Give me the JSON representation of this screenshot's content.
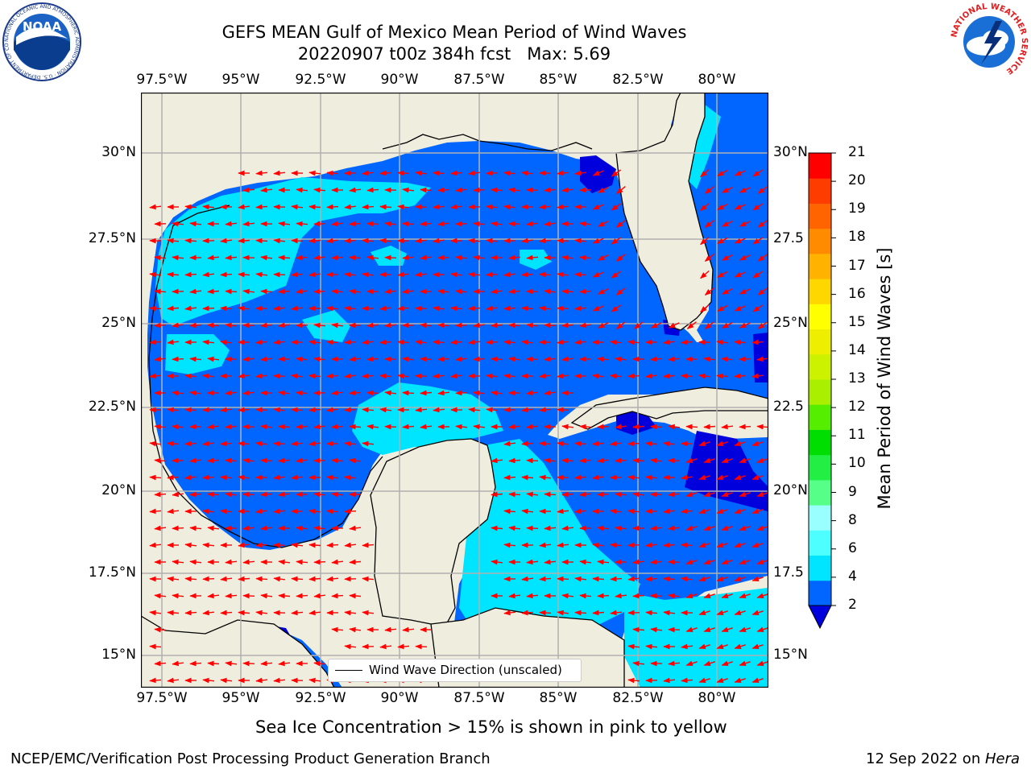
{
  "title": {
    "line1": "GEFS MEAN Gulf of Mexico Mean Period of Wind Waves",
    "line2": "20220907 t00z 384h fcst   Max: 5.69"
  },
  "logos": {
    "noaa": {
      "text": "NOAA",
      "ring_text": "NATIONAL OCEANIC AND ATMOSPHERIC ADMINISTRATION · U.S. DEPARTMENT OF COMMERCE"
    },
    "nws": {
      "ring_text": "NATIONAL WEATHER SERVICE"
    }
  },
  "axes": {
    "x_ticks": [
      "97.5°W",
      "95°W",
      "92.5°W",
      "90°W",
      "87.5°W",
      "85°W",
      "82.5°W",
      "80°W"
    ],
    "y_ticks_left": [
      "30°N",
      "27.5°N",
      "25°N",
      "22.5°N",
      "20°N",
      "17.5°N",
      "15°N"
    ],
    "y_ticks_right": [
      "30°N",
      "27.5",
      "25°N",
      "22.5",
      "20°N",
      "17.5",
      "15°N"
    ]
  },
  "colorbar": {
    "label": "Mean Period of Wind Waves [s]",
    "ticks": [
      "21",
      "20",
      "19",
      "18",
      "17",
      "16",
      "15",
      "14",
      "13",
      "12",
      "11",
      "10",
      "9",
      "8",
      "6",
      "4",
      "2"
    ],
    "colors": [
      "#0066ff",
      "#00e5ff",
      "#4dffff",
      "#99ffff",
      "#55ff88",
      "#22ee44",
      "#00dd00",
      "#55ee00",
      "#aaee00",
      "#ccf200",
      "#eeee00",
      "#ffff00",
      "#ffd700",
      "#ffb300",
      "#ff8c00",
      "#ff6400",
      "#ff3c00",
      "#ff0000"
    ],
    "under_color": "#0000dd"
  },
  "legend": {
    "label": "Wind Wave Direction (unscaled)"
  },
  "colors": {
    "land": "#efedde",
    "ocean_2_4": "#0066ff",
    "ocean_4_6": "#00e5ff",
    "ocean_below_2": "#0000dd",
    "arrows": "#ff0000",
    "grid": "#b0b0b0"
  },
  "subtitle": "Sea Ice Concentration > 15% is shown in pink to yellow",
  "footer": {
    "left": "NCEP/EMC/Verification Post Processing Product Generation Branch",
    "right_prefix": "12 Sep 2022 on ",
    "right_host": "Hera"
  }
}
